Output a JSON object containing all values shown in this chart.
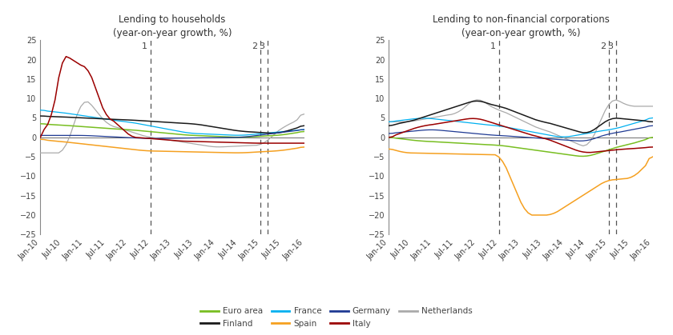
{
  "title1": "Lending to households\n(year-on-year growth, %)",
  "title2": "Lending to non-financial corporations\n(year-on-year growth, %)",
  "ylim": [
    -25,
    25
  ],
  "yticks": [
    -25,
    -20,
    -15,
    -10,
    -5,
    0,
    5,
    10,
    15,
    20,
    25
  ],
  "colors": {
    "euro_area": "#78be21",
    "finland": "#1a1a1a",
    "france": "#00b0f0",
    "spain": "#f5a020",
    "germany": "#1f3a93",
    "italy": "#9b0000",
    "netherlands": "#aaaaaa"
  },
  "x_ticklabels": [
    "Jan-10",
    "Jul-10",
    "Jan-11",
    "Jul-11",
    "Jan-12",
    "Jul-12",
    "Jan-13",
    "Jul-13",
    "Jan-14",
    "Jul-14",
    "Jan-15",
    "Jul-15",
    "Jan-16"
  ],
  "vline_positions": {
    "1": 30,
    "2": 60,
    "3": 62
  },
  "legend_order": [
    [
      "Euro area",
      "euro_area"
    ],
    [
      "Finland",
      "finland"
    ],
    [
      "France",
      "france"
    ],
    [
      "Spain",
      "spain"
    ],
    [
      "Germany",
      "germany"
    ],
    [
      "Italy",
      "italy"
    ],
    [
      "Netherlands",
      "netherlands"
    ]
  ]
}
